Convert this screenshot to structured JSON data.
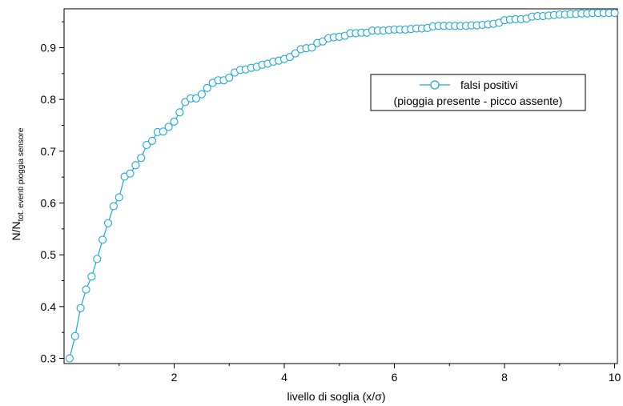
{
  "chart_data": {
    "type": "line",
    "xlabel": "livello di soglia (x/σ)",
    "ylabel_main": "N/N",
    "ylabel_sub": "tot. eventi pioggia sensore",
    "xlim": [
      0.0,
      10.05
    ],
    "ylim": [
      0.29,
      0.975
    ],
    "x_ticks": [
      2,
      4,
      6,
      8,
      10
    ],
    "y_ticks": [
      0.3,
      0.4,
      0.5,
      0.6,
      0.7,
      0.8,
      0.9
    ],
    "x_tick_labels": [
      "2",
      "4",
      "6",
      "8",
      "10"
    ],
    "y_tick_labels": [
      "0.3",
      "0.4",
      "0.5",
      "0.6",
      "0.7",
      "0.8",
      "0.9"
    ],
    "grid": false,
    "legend": {
      "position": "upper-right",
      "line1": "falsi positivi",
      "line2": "(pioggia presente - picco assente)"
    },
    "colors": {
      "series": "#1aa7d8",
      "axis": "#000000"
    },
    "series": [
      {
        "name": "falsi positivi",
        "x": [
          0.1,
          0.2,
          0.3,
          0.4,
          0.5,
          0.6,
          0.7,
          0.8,
          0.9,
          1.0,
          1.1,
          1.2,
          1.3,
          1.4,
          1.5,
          1.6,
          1.7,
          1.8,
          1.9,
          2.0,
          2.1,
          2.2,
          2.3,
          2.4,
          2.5,
          2.6,
          2.7,
          2.8,
          2.9,
          3.0,
          3.1,
          3.2,
          3.3,
          3.4,
          3.5,
          3.6,
          3.7,
          3.8,
          3.9,
          4.0,
          4.1,
          4.2,
          4.3,
          4.4,
          4.5,
          4.6,
          4.7,
          4.8,
          4.9,
          5.0,
          5.1,
          5.2,
          5.3,
          5.4,
          5.5,
          5.6,
          5.7,
          5.8,
          5.9,
          6.0,
          6.1,
          6.2,
          6.3,
          6.4,
          6.5,
          6.6,
          6.7,
          6.8,
          6.9,
          7.0,
          7.1,
          7.2,
          7.3,
          7.4,
          7.5,
          7.6,
          7.7,
          7.8,
          7.9,
          8.0,
          8.1,
          8.2,
          8.3,
          8.4,
          8.5,
          8.6,
          8.7,
          8.8,
          8.9,
          9.0,
          9.1,
          9.2,
          9.3,
          9.4,
          9.5,
          9.6,
          9.7,
          9.8,
          9.9,
          10.0
        ],
        "y": [
          0.3,
          0.343,
          0.397,
          0.433,
          0.458,
          0.492,
          0.529,
          0.561,
          0.594,
          0.611,
          0.651,
          0.657,
          0.673,
          0.687,
          0.712,
          0.72,
          0.737,
          0.738,
          0.747,
          0.757,
          0.775,
          0.795,
          0.802,
          0.802,
          0.81,
          0.822,
          0.832,
          0.837,
          0.837,
          0.842,
          0.852,
          0.857,
          0.858,
          0.861,
          0.863,
          0.867,
          0.869,
          0.873,
          0.875,
          0.878,
          0.882,
          0.889,
          0.897,
          0.899,
          0.9,
          0.909,
          0.912,
          0.918,
          0.92,
          0.921,
          0.923,
          0.928,
          0.928,
          0.929,
          0.929,
          0.933,
          0.933,
          0.933,
          0.934,
          0.935,
          0.935,
          0.935,
          0.936,
          0.937,
          0.937,
          0.938,
          0.941,
          0.942,
          0.942,
          0.942,
          0.942,
          0.942,
          0.942,
          0.943,
          0.943,
          0.944,
          0.945,
          0.946,
          0.948,
          0.953,
          0.954,
          0.955,
          0.955,
          0.956,
          0.96,
          0.961,
          0.961,
          0.962,
          0.963,
          0.964,
          0.964,
          0.965,
          0.965,
          0.966,
          0.966,
          0.967,
          0.967,
          0.967,
          0.967,
          0.967
        ]
      }
    ]
  }
}
